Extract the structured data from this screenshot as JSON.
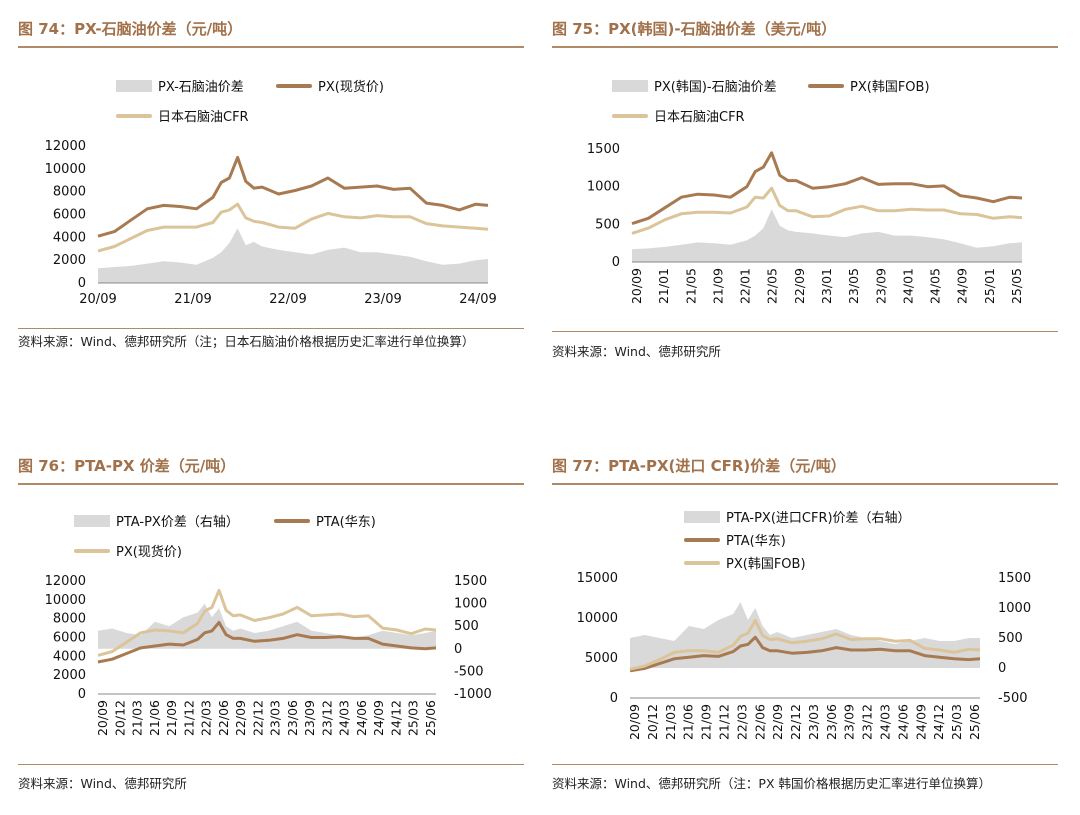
{
  "colors": {
    "title": "#a0714a",
    "rule": "#b08a66",
    "gray": "#d9d9d9",
    "brown": "#a87a52",
    "tan": "#dcc49a"
  },
  "panels": [
    {
      "title": "图 74：PX-石脑油价差（元/吨）",
      "source": "资料来源：Wind、德邦研究所（注；日本石脑油价格根据历史汇率进行单位换算）",
      "legend": [
        "PX-石脑油价差",
        "PX(现货价)",
        "日本石脑油CFR"
      ]
    },
    {
      "title": "图 75：PX(韩国)-石脑油价差（美元/吨）",
      "source": "资料来源：Wind、德邦研究所",
      "legend": [
        "PX(韩国)-石脑油价差",
        "PX(韩国FOB)",
        "日本石脑油CFR"
      ]
    },
    {
      "title": "图 76：PTA-PX 价差（元/吨）",
      "source": "资料来源：Wind、德邦研究所",
      "legend": [
        "PTA-PX价差（右轴）",
        "PTA(华东)",
        "PX(现货价)"
      ]
    },
    {
      "title": "图 77：PTA-PX(进口 CFR)价差（元/吨）",
      "source": "资料来源：Wind、德邦研究所（注：PX 韩国价格根据历史汇率进行单位换算）",
      "legend": [
        "PTA-PX(进口CFR)价差（右轴）",
        "PTA(华东)",
        "PX(韩国FOB)"
      ]
    }
  ],
  "chart_data": [
    {
      "type": "area",
      "x_ticks": [
        "20/09",
        "21/09",
        "22/09",
        "23/09",
        "24/09"
      ],
      "x": [
        2020.7,
        2020.9,
        2021.1,
        2021.3,
        2021.5,
        2021.7,
        2021.9,
        2022.1,
        2022.2,
        2022.3,
        2022.4,
        2022.5,
        2022.6,
        2022.7,
        2022.9,
        2023.1,
        2023.3,
        2023.5,
        2023.7,
        2023.9,
        2024.1,
        2024.3,
        2024.5,
        2024.7,
        2024.9,
        2025.1,
        2025.3,
        2025.45
      ],
      "ylim": [
        0,
        12000
      ],
      "yticks": [
        0,
        2000,
        4000,
        6000,
        8000,
        10000,
        12000
      ],
      "series": [
        {
          "name": "PX-石脑油价差",
          "values": [
            1300,
            1400,
            1500,
            1700,
            1900,
            1800,
            1600,
            2200,
            2700,
            3500,
            4800,
            3300,
            3600,
            3200,
            2900,
            2700,
            2500,
            2900,
            3100,
            2700,
            2700,
            2500,
            2300,
            1900,
            1600,
            1700,
            2000,
            2100
          ]
        },
        {
          "name": "PX(现货价)",
          "values": [
            4100,
            4500,
            5500,
            6500,
            6800,
            6700,
            6500,
            7500,
            8800,
            9200,
            11000,
            8900,
            8300,
            8400,
            7800,
            8100,
            8500,
            9200,
            8300,
            8400,
            8500,
            8200,
            8300,
            7000,
            6800,
            6400,
            6900,
            6800
          ]
        },
        {
          "name": "日本石脑油CFR",
          "values": [
            2800,
            3200,
            3900,
            4600,
            4900,
            4900,
            4900,
            5300,
            6200,
            6400,
            6900,
            5700,
            5400,
            5300,
            4900,
            4800,
            5600,
            6100,
            5800,
            5700,
            5900,
            5800,
            5800,
            5200,
            5000,
            4900,
            4800,
            4700
          ]
        }
      ]
    },
    {
      "type": "area",
      "x_ticks": [
        "20/09",
        "21/01",
        "21/05",
        "21/09",
        "22/01",
        "22/05",
        "22/09",
        "23/01",
        "23/05",
        "23/09",
        "24/01",
        "24/05",
        "24/09",
        "25/01",
        "25/05"
      ],
      "x": [
        2020.7,
        2020.9,
        2021.1,
        2021.3,
        2021.5,
        2021.7,
        2021.9,
        2022.1,
        2022.2,
        2022.3,
        2022.4,
        2022.5,
        2022.6,
        2022.7,
        2022.9,
        2023.1,
        2023.3,
        2023.5,
        2023.7,
        2023.9,
        2024.1,
        2024.3,
        2024.5,
        2024.7,
        2024.9,
        2025.1,
        2025.3,
        2025.45
      ],
      "ylim": [
        0,
        1500
      ],
      "yticks": [
        0,
        500,
        1000,
        1500
      ],
      "series": [
        {
          "name": "PX(韩国)-石脑油价差",
          "values": [
            170,
            180,
            200,
            230,
            260,
            250,
            230,
            290,
            350,
            450,
            700,
            480,
            420,
            400,
            380,
            350,
            330,
            380,
            400,
            350,
            350,
            330,
            300,
            250,
            190,
            210,
            250,
            260
          ]
        },
        {
          "name": "PX(韩国FOB)",
          "values": [
            510,
            580,
            720,
            860,
            900,
            890,
            860,
            1000,
            1200,
            1260,
            1450,
            1150,
            1080,
            1080,
            980,
            1000,
            1040,
            1120,
            1030,
            1040,
            1040,
            1000,
            1010,
            880,
            850,
            800,
            860,
            850
          ]
        },
        {
          "name": "日本石脑油CFR",
          "values": [
            380,
            450,
            560,
            640,
            660,
            660,
            650,
            730,
            860,
            850,
            980,
            750,
            680,
            680,
            600,
            610,
            700,
            740,
            680,
            680,
            700,
            690,
            690,
            640,
            630,
            580,
            600,
            590
          ]
        }
      ]
    },
    {
      "type": "line",
      "x_ticks": [
        "20/09",
        "20/12",
        "21/03",
        "21/06",
        "21/09",
        "21/12",
        "22/03",
        "22/06",
        "22/09",
        "22/12",
        "23/03",
        "23/06",
        "23/09",
        "23/12",
        "24/03",
        "24/06",
        "24/09",
        "24/12",
        "25/03",
        "25/06"
      ],
      "x": [
        2020.7,
        2020.9,
        2021.1,
        2021.3,
        2021.5,
        2021.7,
        2021.9,
        2022.1,
        2022.2,
        2022.3,
        2022.4,
        2022.5,
        2022.6,
        2022.7,
        2022.9,
        2023.1,
        2023.3,
        2023.5,
        2023.7,
        2023.9,
        2024.1,
        2024.3,
        2024.5,
        2024.7,
        2024.9,
        2025.1,
        2025.3,
        2025.45
      ],
      "ylim": [
        0,
        12000
      ],
      "yticks": [
        0,
        2000,
        4000,
        6000,
        8000,
        10000,
        12000
      ],
      "y2lim": [
        -1000,
        1500
      ],
      "y2ticks": [
        -1000,
        -500,
        0,
        500,
        1000,
        1500
      ],
      "series": [
        {
          "name": "PTA-PX价差（右轴）",
          "axis": "right",
          "values": [
            400,
            450,
            350,
            300,
            600,
            500,
            700,
            800,
            1000,
            700,
            900,
            500,
            400,
            450,
            350,
            400,
            500,
            600,
            400,
            350,
            300,
            250,
            300,
            400,
            350,
            300,
            350,
            400
          ]
        },
        {
          "name": "PTA(华东)",
          "values": [
            3400,
            3700,
            4300,
            4900,
            5100,
            5300,
            5200,
            5800,
            6500,
            6700,
            7600,
            6300,
            5900,
            5900,
            5600,
            5700,
            5900,
            6300,
            6000,
            6000,
            6100,
            5900,
            5900,
            5300,
            5100,
            4900,
            4800,
            4900
          ]
        },
        {
          "name": "PX(现货价)",
          "values": [
            4100,
            4500,
            5500,
            6500,
            6800,
            6700,
            6500,
            7500,
            8800,
            9200,
            11000,
            8900,
            8300,
            8400,
            7800,
            8100,
            8500,
            9200,
            8300,
            8400,
            8500,
            8200,
            8300,
            7000,
            6800,
            6400,
            6900,
            6800
          ]
        }
      ]
    },
    {
      "type": "line",
      "x_ticks": [
        "20/09",
        "20/12",
        "21/03",
        "21/06",
        "21/09",
        "21/12",
        "22/03",
        "22/06",
        "22/09",
        "22/12",
        "23/03",
        "23/06",
        "23/09",
        "23/12",
        "24/03",
        "24/06",
        "24/09",
        "24/12",
        "25/03",
        "25/06"
      ],
      "x": [
        2020.7,
        2020.9,
        2021.1,
        2021.3,
        2021.5,
        2021.7,
        2021.9,
        2022.1,
        2022.2,
        2022.3,
        2022.4,
        2022.5,
        2022.6,
        2022.7,
        2022.9,
        2023.1,
        2023.3,
        2023.5,
        2023.7,
        2023.9,
        2024.1,
        2024.3,
        2024.5,
        2024.7,
        2024.9,
        2025.1,
        2025.3,
        2025.45
      ],
      "ylim": [
        0,
        15000
      ],
      "yticks": [
        0,
        5000,
        10000,
        15000
      ],
      "y2lim": [
        -500,
        1500
      ],
      "y2ticks": [
        -500,
        0,
        500,
        1000,
        1500
      ],
      "series": [
        {
          "name": "PTA-PX(进口CFR)价差（右轴）",
          "axis": "right",
          "values": [
            500,
            550,
            500,
            450,
            700,
            650,
            800,
            900,
            1100,
            800,
            1000,
            700,
            550,
            600,
            500,
            550,
            600,
            650,
            550,
            500,
            450,
            400,
            450,
            500,
            450,
            450,
            500,
            500
          ]
        },
        {
          "name": "PTA(华东)",
          "values": [
            3400,
            3700,
            4300,
            4900,
            5100,
            5300,
            5200,
            5800,
            6500,
            6700,
            7600,
            6300,
            5900,
            5900,
            5600,
            5700,
            5900,
            6300,
            6000,
            6000,
            6100,
            5900,
            5900,
            5300,
            5100,
            4900,
            4800,
            4900
          ]
        },
        {
          "name": "PX(韩国FOB)",
          "values": [
            3600,
            4000,
            4800,
            5700,
            5900,
            5900,
            5700,
            6600,
            7700,
            8100,
            9700,
            7800,
            7300,
            7400,
            6900,
            7100,
            7400,
            8000,
            7300,
            7400,
            7400,
            7100,
            7200,
            6200,
            6000,
            5700,
            6100,
            6000
          ]
        }
      ]
    }
  ]
}
